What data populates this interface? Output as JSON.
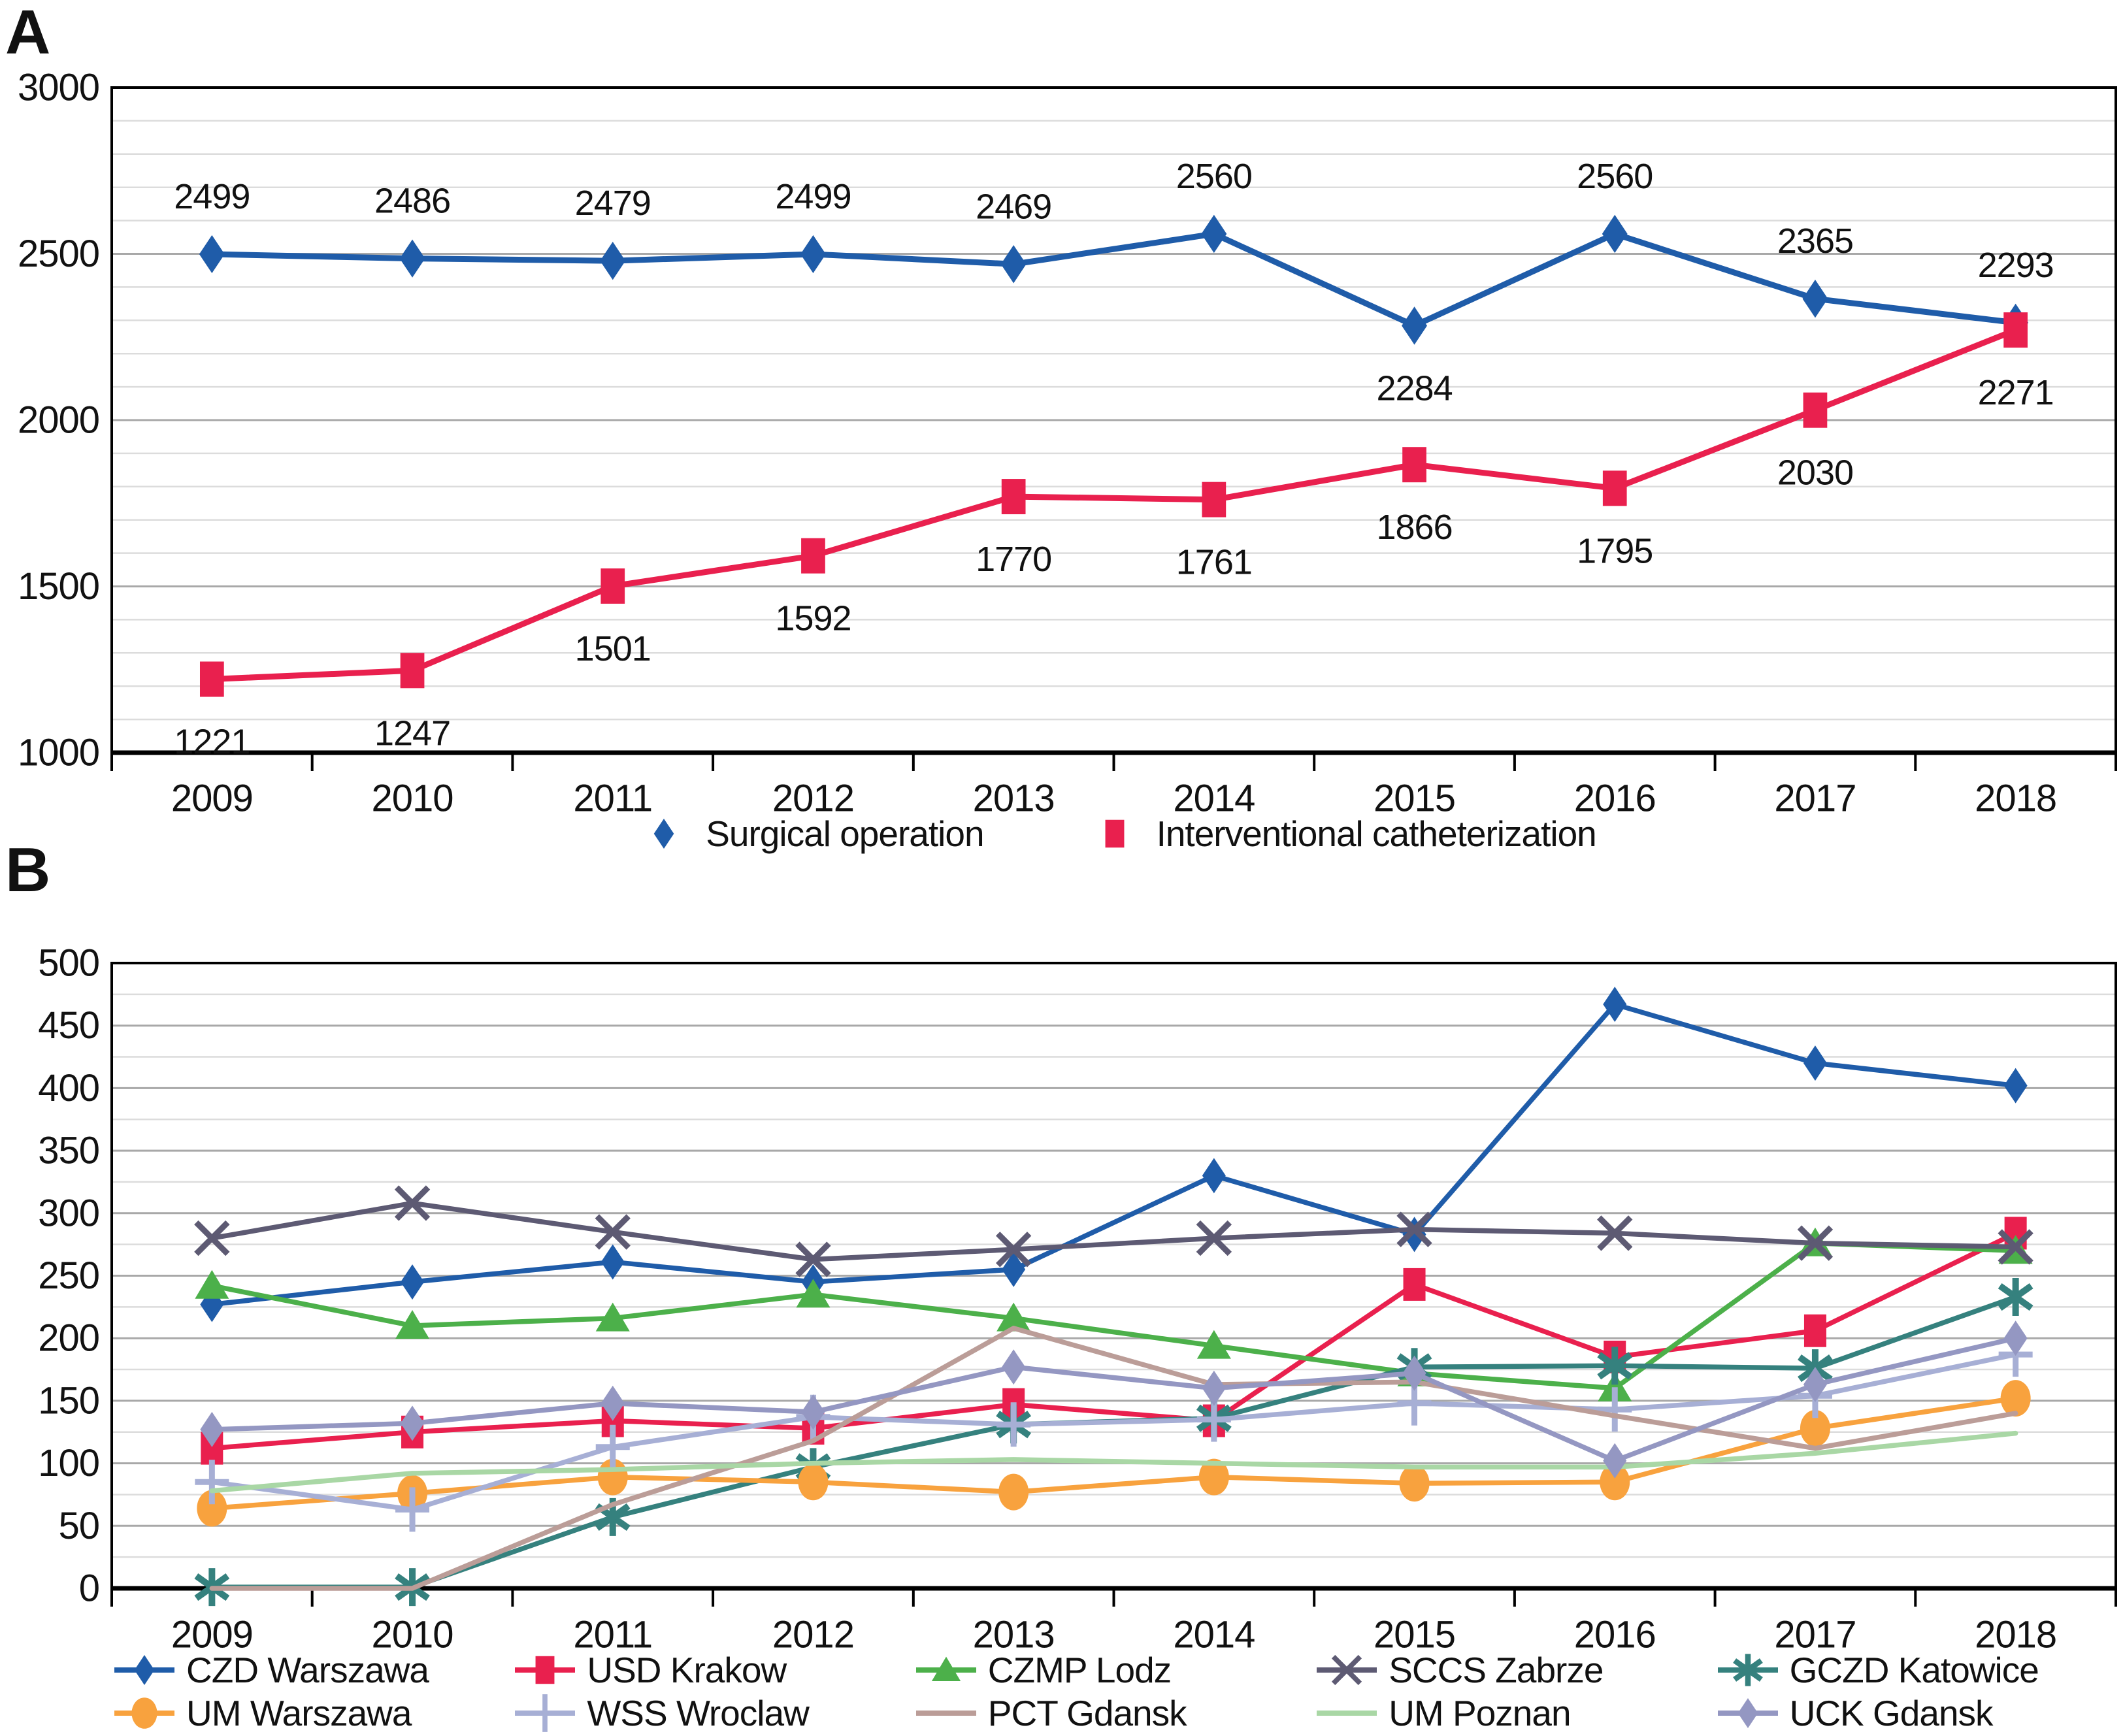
{
  "chart_data": [
    {
      "panel": "A",
      "type": "line",
      "categories": [
        "2009",
        "2010",
        "2011",
        "2012",
        "2013",
        "2014",
        "2015",
        "2016",
        "2017",
        "2018"
      ],
      "ylim": [
        1000,
        3000
      ],
      "ytick_step": 500,
      "minor_step": 100,
      "grid": true,
      "legend_position": "bottom",
      "axis_color": "#000000",
      "grid_light": "#dcdcdc",
      "grid_dark": "#a8a8a8",
      "show_point_labels": true,
      "series": [
        {
          "name": "Surgical operation",
          "color": "#1f5ca9",
          "marker": "diamond",
          "values": [
            2499,
            2486,
            2479,
            2499,
            2469,
            2560,
            2284,
            2560,
            2365,
            2293
          ],
          "label_side": [
            "above",
            "above",
            "above",
            "above",
            "above",
            "above",
            "below",
            "above",
            "above",
            "above"
          ]
        },
        {
          "name": "Interventional catheterization",
          "color": "#e9204e",
          "marker": "square",
          "values": [
            1221,
            1247,
            1501,
            1592,
            1770,
            1761,
            1866,
            1795,
            2030,
            2271
          ],
          "label_side": [
            "below",
            "below",
            "below",
            "below",
            "below",
            "below",
            "below",
            "below",
            "below",
            "below"
          ]
        }
      ]
    },
    {
      "panel": "B",
      "type": "line",
      "categories": [
        "2009",
        "2010",
        "2011",
        "2012",
        "2013",
        "2014",
        "2015",
        "2016",
        "2017",
        "2018"
      ],
      "ylim": [
        0,
        500
      ],
      "ytick_step": 50,
      "minor_step": 25,
      "grid": true,
      "legend_position": "bottom",
      "axis_color": "#000000",
      "grid_light": "#dcdcdc",
      "grid_dark": "#a8a8a8",
      "show_point_labels": false,
      "series": [
        {
          "name": "CZD Warszawa",
          "color": "#1f5ca9",
          "marker": "diamond",
          "values": [
            227,
            245,
            261,
            245,
            255,
            330,
            283,
            467,
            420,
            402
          ]
        },
        {
          "name": "USD Krakow",
          "color": "#e9204e",
          "marker": "square",
          "values": [
            112,
            125,
            134,
            128,
            147,
            134,
            243,
            185,
            206,
            284
          ]
        },
        {
          "name": "CZMP Lodz",
          "color": "#4cb04a",
          "marker": "triangle",
          "values": [
            242,
            210,
            216,
            235,
            216,
            194,
            172,
            160,
            276,
            270
          ]
        },
        {
          "name": "SCCS Zabrze",
          "color": "#5d5a73",
          "marker": "x",
          "values": [
            280,
            308,
            285,
            263,
            271,
            280,
            287,
            284,
            276,
            273
          ]
        },
        {
          "name": "GCZD Katowice",
          "color": "#35817e",
          "marker": "asterisk",
          "values": [
            1,
            1,
            57,
            97,
            131,
            136,
            177,
            178,
            176,
            233
          ]
        },
        {
          "name": "UM Warszawa",
          "color": "#f8a23e",
          "marker": "circle",
          "values": [
            64,
            76,
            89,
            85,
            77,
            89,
            84,
            85,
            128,
            152
          ]
        },
        {
          "name": "WSS Wroclaw",
          "color": "#a7afd5",
          "marker": "plus",
          "values": [
            85,
            63,
            113,
            137,
            131,
            135,
            148,
            143,
            154,
            187
          ]
        },
        {
          "name": "PCT Gdansk",
          "color": "#bb9d98",
          "marker": "none",
          "values": [
            0,
            0,
            67,
            118,
            208,
            163,
            165,
            138,
            112,
            140
          ]
        },
        {
          "name": "UM Poznan",
          "color": "#a9d7a5",
          "marker": "none",
          "values": [
            78,
            92,
            95,
            100,
            103,
            100,
            97,
            97,
            108,
            124
          ]
        },
        {
          "name": "UCK Gdansk",
          "color": "#9497c2",
          "marker": "diamond",
          "values": [
            127,
            132,
            148,
            141,
            177,
            160,
            172,
            102,
            163,
            200
          ]
        }
      ]
    }
  ]
}
